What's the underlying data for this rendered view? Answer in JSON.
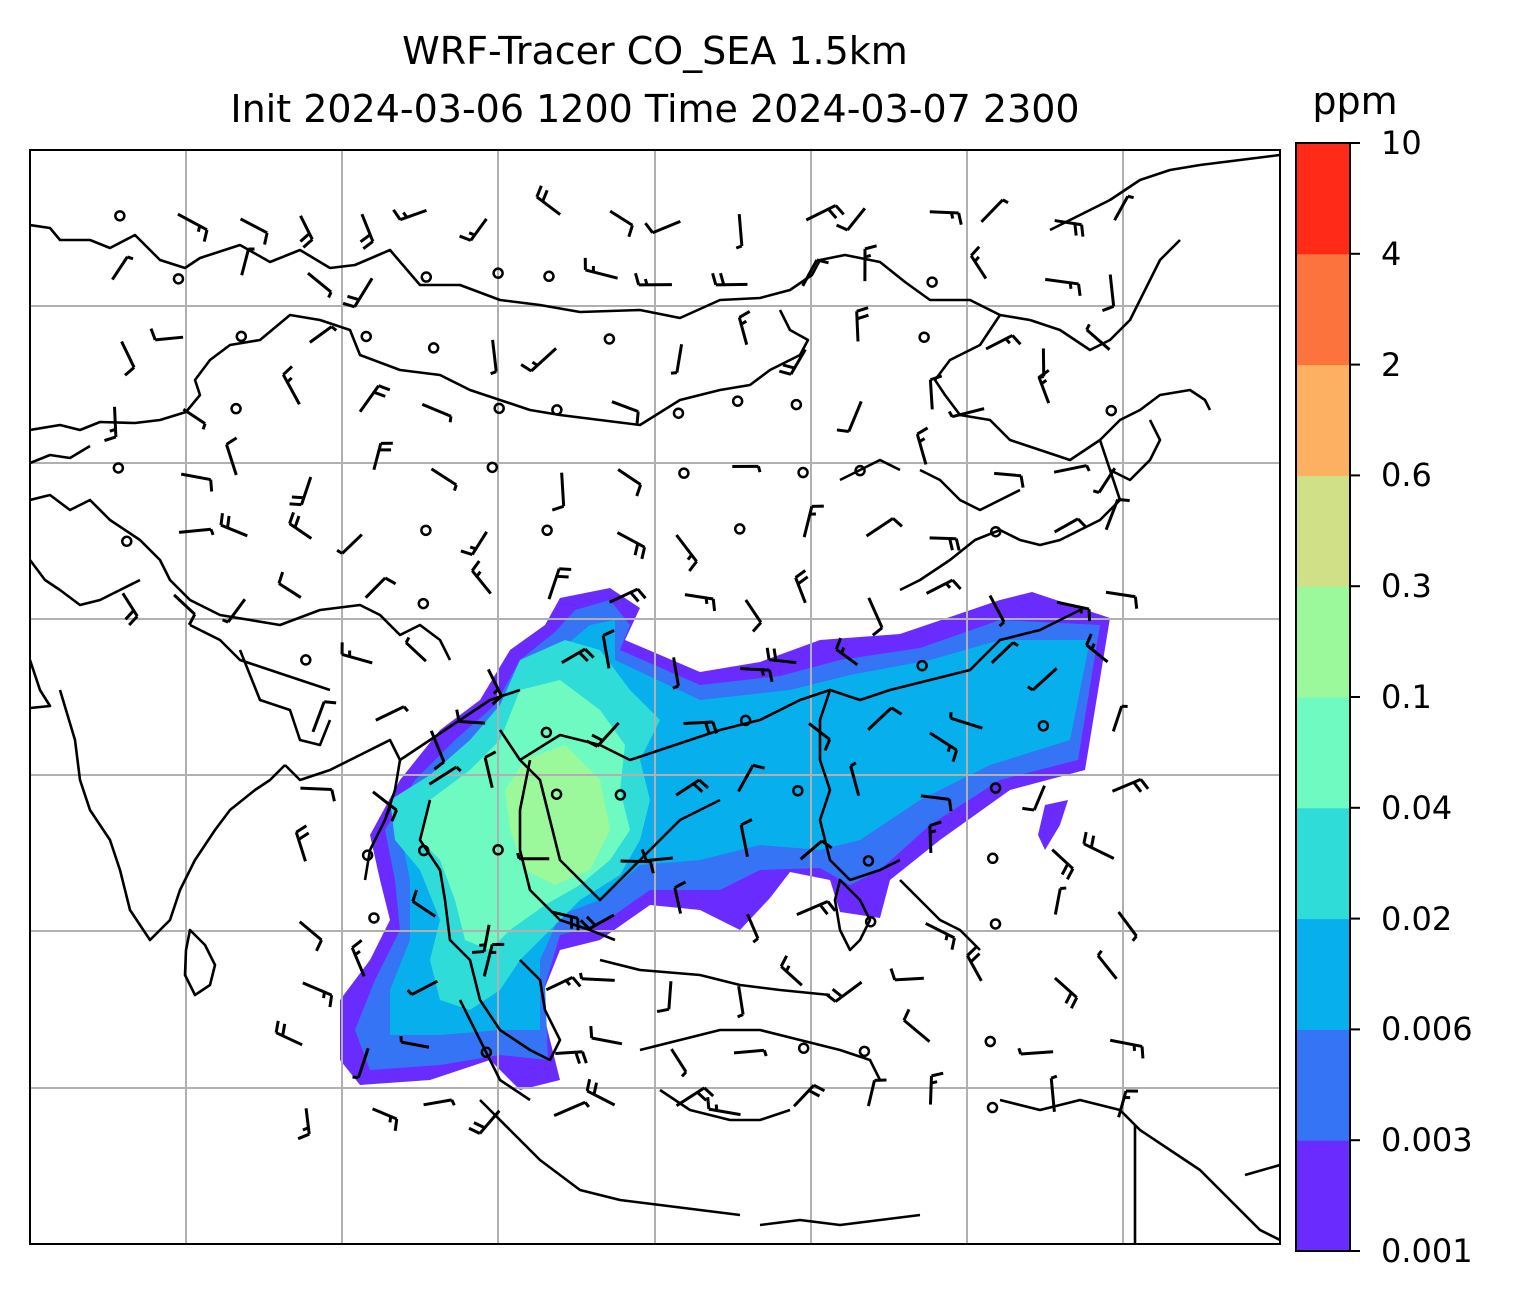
{
  "title": {
    "line1": "WRF-Tracer CO_SEA 1.5km",
    "line2": "Init 2024-03-06 1200 Time 2024-03-07 2300"
  },
  "colorbar": {
    "unit": "ppm",
    "levels": [
      "0.001",
      "0.003",
      "0.006",
      "0.02",
      "0.04",
      "0.1",
      "0.3",
      "0.6",
      "2",
      "4",
      "10"
    ],
    "colors": [
      "#6a2bff",
      "#3574f5",
      "#07b0ec",
      "#2fdcd8",
      "#6ffac2",
      "#9cf99b",
      "#cfe086",
      "#fdb061",
      "#fd733d",
      "#ff2a18"
    ]
  },
  "map": {
    "gridlines": true,
    "coastline_color": "#000000",
    "grid_color": "#b0b0b0",
    "plume_colors": {
      "outer": "#6a2bff",
      "mid": "#3574f5",
      "inner": "#07b0ec",
      "core1": "#2fdcd8",
      "core2": "#6ffac2",
      "core3": "#9cf99b"
    },
    "wind_barbs": true
  }
}
